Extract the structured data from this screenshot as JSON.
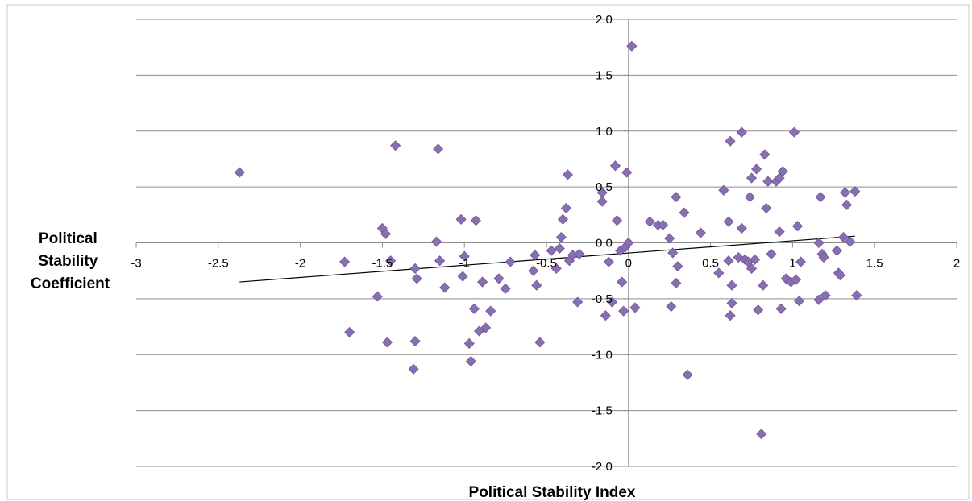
{
  "chart_data": {
    "type": "scatter",
    "title": "",
    "xlabel": "Political Stability Index",
    "ylabel": [
      "Political",
      "Stability",
      "Coefficient"
    ],
    "xlim": [
      -3,
      2
    ],
    "ylim": [
      -2.0,
      2.0
    ],
    "x_ticks": [
      -3,
      -2.5,
      -2,
      -1.5,
      -1,
      -0.5,
      0,
      0.5,
      1,
      1.5,
      2
    ],
    "x_tick_labels": [
      "-3",
      "-2.5",
      "-2",
      "-1.5",
      "-1",
      "-0.5",
      "0",
      "0.5",
      "1",
      "1.5",
      "2"
    ],
    "y_ticks": [
      2.0,
      1.5,
      1.0,
      0.5,
      0.0,
      -0.5,
      -1.0,
      -1.5,
      -2.0
    ],
    "y_tick_labels": [
      "2.0",
      "1.5",
      "1.0",
      "0.5",
      "0.0",
      "-0.5",
      "-1.0",
      "-1.5",
      "-2.0"
    ],
    "grid": "horizontal",
    "marker_color": "#8a6fb0",
    "trendline": {
      "x": [
        -2.37,
        1.38
      ],
      "y": [
        -0.35,
        0.06
      ]
    },
    "series": [
      {
        "points": [
          [
            -2.37,
            0.63
          ],
          [
            -1.73,
            -0.17
          ],
          [
            -1.7,
            -0.8
          ],
          [
            -1.53,
            -0.48
          ],
          [
            -1.5,
            0.13
          ],
          [
            -1.48,
            0.08
          ],
          [
            -1.47,
            -0.89
          ],
          [
            -1.45,
            -0.16
          ],
          [
            -1.42,
            0.87
          ],
          [
            -1.31,
            -1.13
          ],
          [
            -1.3,
            -0.88
          ],
          [
            -1.3,
            -0.23
          ],
          [
            -1.29,
            -0.32
          ],
          [
            -1.17,
            0.01
          ],
          [
            -1.16,
            0.84
          ],
          [
            -1.15,
            -0.16
          ],
          [
            -1.12,
            -0.4
          ],
          [
            -1.02,
            0.21
          ],
          [
            -1.01,
            -0.3
          ],
          [
            -1.0,
            -0.12
          ],
          [
            -0.97,
            -0.9
          ],
          [
            -0.96,
            -1.06
          ],
          [
            -0.94,
            -0.59
          ],
          [
            -0.93,
            0.2
          ],
          [
            -0.91,
            -0.79
          ],
          [
            -0.89,
            -0.35
          ],
          [
            -0.87,
            -0.76
          ],
          [
            -0.84,
            -0.61
          ],
          [
            -0.79,
            -0.32
          ],
          [
            -0.75,
            -0.41
          ],
          [
            -0.72,
            -0.17
          ],
          [
            -0.58,
            -0.25
          ],
          [
            -0.57,
            -0.11
          ],
          [
            -0.56,
            -0.38
          ],
          [
            -0.54,
            -0.89
          ],
          [
            -0.47,
            -0.07
          ],
          [
            -0.44,
            -0.23
          ],
          [
            -0.42,
            -0.05
          ],
          [
            -0.41,
            0.05
          ],
          [
            -0.4,
            0.21
          ],
          [
            -0.38,
            0.31
          ],
          [
            -0.37,
            0.61
          ],
          [
            -0.36,
            -0.16
          ],
          [
            -0.34,
            -0.11
          ],
          [
            -0.31,
            -0.53
          ],
          [
            -0.3,
            -0.1
          ],
          [
            -0.16,
            0.45
          ],
          [
            -0.16,
            0.37
          ],
          [
            -0.14,
            -0.65
          ],
          [
            -0.12,
            -0.17
          ],
          [
            -0.1,
            -0.53
          ],
          [
            -0.08,
            0.69
          ],
          [
            -0.07,
            0.2
          ],
          [
            -0.05,
            -0.07
          ],
          [
            -0.04,
            -0.35
          ],
          [
            -0.03,
            -0.61
          ],
          [
            -0.02,
            -0.04
          ],
          [
            -0.01,
            0.63
          ],
          [
            0.0,
            0.0
          ],
          [
            0.02,
            1.76
          ],
          [
            0.04,
            -0.58
          ],
          [
            0.13,
            0.19
          ],
          [
            0.18,
            0.16
          ],
          [
            0.21,
            0.16
          ],
          [
            0.25,
            0.04
          ],
          [
            0.26,
            -0.57
          ],
          [
            0.27,
            -0.09
          ],
          [
            0.29,
            0.41
          ],
          [
            0.29,
            -0.36
          ],
          [
            0.3,
            -0.21
          ],
          [
            0.34,
            0.27
          ],
          [
            0.36,
            -1.18
          ],
          [
            0.44,
            0.09
          ],
          [
            0.55,
            -0.27
          ],
          [
            0.58,
            0.47
          ],
          [
            0.61,
            0.19
          ],
          [
            0.61,
            -0.16
          ],
          [
            0.62,
            -0.65
          ],
          [
            0.62,
            0.91
          ],
          [
            0.63,
            -0.54
          ],
          [
            0.63,
            -0.38
          ],
          [
            0.67,
            -0.13
          ],
          [
            0.69,
            0.99
          ],
          [
            0.69,
            0.13
          ],
          [
            0.71,
            -0.15
          ],
          [
            0.73,
            -0.17
          ],
          [
            0.74,
            0.41
          ],
          [
            0.75,
            0.58
          ],
          [
            0.75,
            -0.23
          ],
          [
            0.77,
            -0.15
          ],
          [
            0.78,
            0.66
          ],
          [
            0.79,
            -0.6
          ],
          [
            0.81,
            -1.71
          ],
          [
            0.82,
            -0.38
          ],
          [
            0.83,
            0.79
          ],
          [
            0.84,
            0.31
          ],
          [
            0.85,
            0.55
          ],
          [
            0.87,
            -0.1
          ],
          [
            0.9,
            0.55
          ],
          [
            0.92,
            0.58
          ],
          [
            0.92,
            0.1
          ],
          [
            0.93,
            -0.59
          ],
          [
            0.94,
            0.64
          ],
          [
            0.96,
            -0.32
          ],
          [
            0.99,
            -0.35
          ],
          [
            1.01,
            0.99
          ],
          [
            1.02,
            -0.33
          ],
          [
            1.03,
            0.15
          ],
          [
            1.04,
            -0.52
          ],
          [
            1.05,
            -0.17
          ],
          [
            1.16,
            0.0
          ],
          [
            1.16,
            -0.51
          ],
          [
            1.17,
            0.41
          ],
          [
            1.18,
            -0.1
          ],
          [
            1.19,
            -0.13
          ],
          [
            1.2,
            -0.47
          ],
          [
            1.27,
            -0.07
          ],
          [
            1.28,
            -0.27
          ],
          [
            1.29,
            -0.29
          ],
          [
            1.31,
            0.05
          ],
          [
            1.32,
            0.45
          ],
          [
            1.33,
            0.34
          ],
          [
            1.35,
            0.01
          ],
          [
            1.38,
            0.46
          ],
          [
            1.39,
            -0.47
          ]
        ]
      }
    ]
  }
}
